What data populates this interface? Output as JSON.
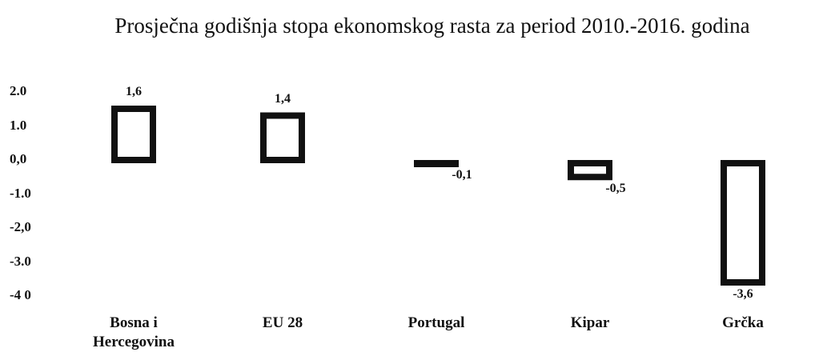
{
  "chart_data": {
    "type": "bar",
    "title": "Prosječna godišnja stopa ekonomskog rasta za period 2010.-2016. godina",
    "categories": [
      "Bosna i Hercegovina",
      "EU 28",
      "Portugal",
      "Kipar",
      "Grčka"
    ],
    "values": [
      1.6,
      1.4,
      -0.1,
      -0.5,
      -3.6
    ],
    "value_labels": [
      "1,6",
      "1,4",
      "-0,1",
      "-0,5",
      "-3,6"
    ],
    "color": "#111111",
    "ylim": [
      -4,
      2
    ],
    "yticks": [
      {
        "value": 2,
        "label": "2.0"
      },
      {
        "value": 1,
        "label": "1.0"
      },
      {
        "value": 0,
        "label": "0,0"
      },
      {
        "value": -1,
        "label": "-1.0"
      },
      {
        "value": -2,
        "label": "-2,0"
      },
      {
        "value": -3,
        "label": "-3.0"
      },
      {
        "value": -4,
        "label": "-4 0"
      }
    ],
    "grid": false
  }
}
